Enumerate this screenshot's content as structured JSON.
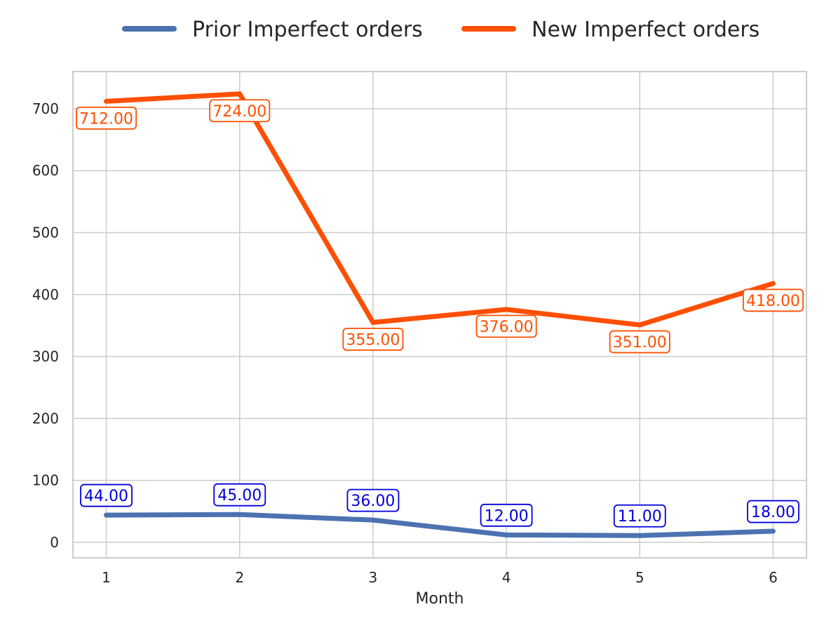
{
  "chart_data": {
    "type": "line",
    "xlabel": "Month",
    "ylabel": "",
    "x": [
      1,
      2,
      3,
      4,
      5,
      6
    ],
    "xticks": [
      "1",
      "2",
      "3",
      "4",
      "5",
      "6"
    ],
    "xlim": [
      0.75,
      6.25
    ],
    "ylim": [
      -25,
      760
    ],
    "yticks": [
      0,
      100,
      200,
      300,
      400,
      500,
      600,
      700
    ],
    "grid": true,
    "legend_position": "top-center",
    "series": [
      {
        "name": "Prior Imperfect orders",
        "color": "#4c72b0",
        "label_color": "#0000dd",
        "label_placement": "above",
        "values": [
          44,
          45,
          36,
          12,
          11,
          18
        ],
        "labels": [
          "44.00",
          "45.00",
          "36.00",
          "12.00",
          "11.00",
          "18.00"
        ]
      },
      {
        "name": "New Imperfect orders",
        "color": "#ff4f00",
        "label_color": "#ff4f00",
        "label_placement": "below",
        "values": [
          712,
          724,
          355,
          376,
          351,
          418
        ],
        "labels": [
          "712.00",
          "724.00",
          "355.00",
          "376.00",
          "351.00",
          "418.00"
        ]
      }
    ]
  }
}
